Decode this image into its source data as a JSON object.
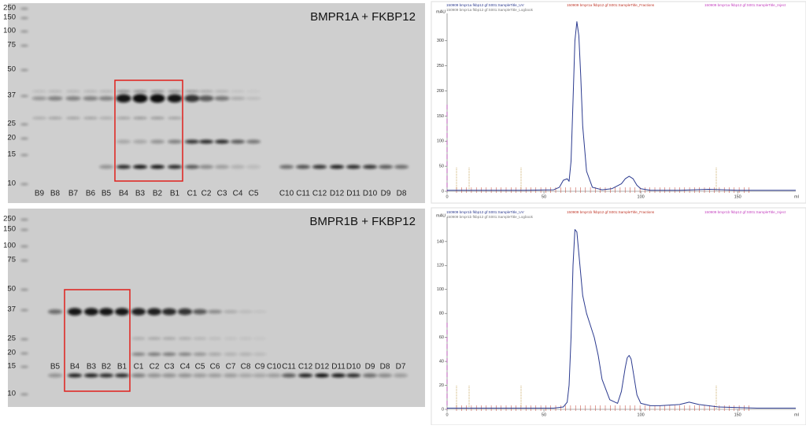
{
  "gels": [
    {
      "title": "BMPR1A + FKBP12",
      "markers": [
        "250",
        "150",
        "100",
        "75",
        "50",
        "37",
        "25",
        "20",
        "15",
        "10"
      ],
      "lanes": [
        "B9",
        "B8",
        "B7",
        "B6",
        "B5",
        "B4",
        "B3",
        "B2",
        "B1",
        "C1",
        "C2",
        "C3",
        "C4",
        "C5",
        "C10",
        "C11",
        "C12",
        "D12",
        "D11",
        "D10",
        "D9",
        "D8"
      ]
    },
    {
      "title": "BMPR1B + FKBP12",
      "markers": [
        "250",
        "150",
        "100",
        "75",
        "50",
        "37",
        "25",
        "20",
        "15",
        "10"
      ],
      "lanes": [
        "B5",
        "B4",
        "B3",
        "B2",
        "B1",
        "C1",
        "C2",
        "C3",
        "C4",
        "C5",
        "C6",
        "C7",
        "C8",
        "C9",
        "C10",
        "C11",
        "C12",
        "D12",
        "D11",
        "D10",
        "D9",
        "D8",
        "D7"
      ]
    }
  ],
  "chart_data": [
    {
      "type": "line",
      "y_label": "mAU",
      "x_label": "ml",
      "headers": [
        "150909 bmpr1a fkbp12 gf:S001:SampleTitle_UV",
        "150909 bmpr1a fkbp12 gf:S001:SampleTitle_Fractions",
        "150909 bmpr1a fkbp12 gf:S001:SampleTitle_Inject",
        "150909 bmpr1a fkbp12 gf:S001:SampleTitle_Logbook"
      ],
      "xlim": [
        0,
        180
      ],
      "xticks": [
        0,
        50,
        100,
        150
      ],
      "ylim": [
        0,
        342
      ],
      "yticks": [
        0,
        50,
        100,
        150,
        200,
        250,
        300
      ],
      "series": [
        {
          "color": "#2b3a8f",
          "x": [
            0,
            20,
            40,
            55,
            58,
            60,
            62,
            63,
            64,
            65,
            66,
            67,
            68,
            69,
            70,
            72,
            75,
            80,
            85,
            90,
            92,
            94,
            96,
            98,
            100,
            105,
            120,
            135,
            150,
            165,
            180
          ],
          "values": [
            2,
            2,
            2,
            3,
            8,
            22,
            25,
            20,
            60,
            180,
            300,
            338,
            310,
            230,
            130,
            40,
            8,
            3,
            5,
            15,
            25,
            30,
            25,
            12,
            5,
            2,
            2,
            4,
            2,
            2,
            2
          ]
        }
      ]
    },
    {
      "type": "line",
      "y_label": "mAU",
      "x_label": "ml",
      "headers": [
        "150909 bmpr1b fkbp12 gf:S001:SampleTitle_UV",
        "150909 bmpr1b fkbp12 gf:S001:SampleTitle_Fractions",
        "150909 bmpr1b fkbp12 gf:S001:SampleTitle_Inject",
        "150909 bmpr1b fkbp12 gf:S001:SampleTitle_Logbook"
      ],
      "xlim": [
        0,
        180
      ],
      "xticks": [
        0,
        50,
        100,
        150
      ],
      "ylim": [
        0,
        155
      ],
      "yticks": [
        0,
        20,
        40,
        60,
        80,
        100,
        120,
        140
      ],
      "series": [
        {
          "color": "#2b3a8f",
          "x": [
            0,
            20,
            40,
            55,
            60,
            62,
            63,
            64,
            65,
            66,
            67,
            68,
            70,
            72,
            74,
            76,
            78,
            80,
            84,
            88,
            90,
            92,
            93,
            94,
            95,
            96,
            98,
            100,
            105,
            110,
            120,
            125,
            130,
            140,
            160,
            180
          ],
          "values": [
            1,
            1,
            1,
            1,
            2,
            6,
            20,
            60,
            120,
            150,
            148,
            130,
            95,
            80,
            70,
            60,
            45,
            25,
            8,
            5,
            15,
            35,
            43,
            45,
            42,
            32,
            12,
            5,
            3,
            3,
            4,
            6,
            4,
            2,
            1,
            1
          ]
        }
      ]
    }
  ]
}
